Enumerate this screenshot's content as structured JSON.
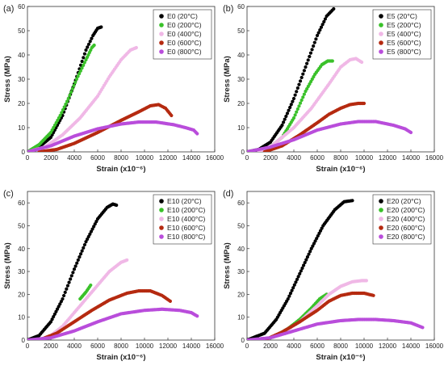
{
  "chart_data": [
    {
      "panel_label": "(a)",
      "type": "scatter",
      "xlabel": "Strain (x10⁻⁶)",
      "ylabel": "Stress (MPa)",
      "xlim": [
        0,
        16000
      ],
      "ylim": [
        0,
        60
      ],
      "xticks": [
        "0",
        "2000",
        "4000",
        "6000",
        "8000",
        "10000",
        "12000",
        "14000",
        "16000"
      ],
      "yticks": [
        "0",
        "10",
        "20",
        "30",
        "40",
        "50",
        "60"
      ],
      "legend_position": "top-right",
      "series": [
        {
          "name": "E0 (20°C)",
          "color": "#000000",
          "points": [
            [
              0,
              0
            ],
            [
              1000,
              2
            ],
            [
              2000,
              6
            ],
            [
              3000,
              15
            ],
            [
              4000,
              28
            ],
            [
              5000,
              42
            ],
            [
              5600,
              48
            ],
            [
              6000,
              51
            ],
            [
              6300,
              51.5
            ]
          ]
        },
        {
          "name": "E0 (200°C)",
          "color": "#3ac12a",
          "points": [
            [
              0,
              0
            ],
            [
              1000,
              3
            ],
            [
              2000,
              8
            ],
            [
              2800,
              15
            ],
            [
              3500,
              22
            ],
            [
              4200,
              30
            ],
            [
              5000,
              38
            ],
            [
              5500,
              43
            ],
            [
              5700,
              44
            ]
          ]
        },
        {
          "name": "E0 (400°C)",
          "color": "#f0b8e6",
          "points": [
            [
              0,
              0
            ],
            [
              1500,
              2
            ],
            [
              3000,
              7
            ],
            [
              4500,
              14
            ],
            [
              6000,
              23
            ],
            [
              7000,
              31
            ],
            [
              8000,
              38
            ],
            [
              8800,
              42
            ],
            [
              9300,
              43
            ]
          ]
        },
        {
          "name": "E0 (600°C)",
          "color": "#b52a10",
          "points": [
            [
              1000,
              0
            ],
            [
              2500,
              1
            ],
            [
              4000,
              3.5
            ],
            [
              6000,
              8
            ],
            [
              8000,
              13
            ],
            [
              9500,
              16.5
            ],
            [
              10500,
              19
            ],
            [
              11200,
              19.5
            ],
            [
              11800,
              18
            ],
            [
              12300,
              15
            ]
          ]
        },
        {
          "name": "E0 (800°C)",
          "color": "#b94ddb",
          "points": [
            [
              0,
              0
            ],
            [
              2000,
              2.5
            ],
            [
              4000,
              6.5
            ],
            [
              6000,
              9.5
            ],
            [
              8000,
              11.5
            ],
            [
              9500,
              12.3
            ],
            [
              11000,
              12.3
            ],
            [
              12500,
              11.2
            ],
            [
              13500,
              10
            ],
            [
              14200,
              9
            ],
            [
              14500,
              7.5
            ]
          ]
        }
      ]
    },
    {
      "panel_label": "(b)",
      "type": "scatter",
      "xlabel": "Strain (x10⁻⁶)",
      "ylabel": "Stress (MPa)",
      "xlim": [
        0,
        16000
      ],
      "ylim": [
        0,
        60
      ],
      "xticks": [
        "0",
        "2000",
        "4000",
        "6000",
        "8000",
        "10000",
        "12000",
        "14000",
        "16000"
      ],
      "yticks": [
        "0",
        "10",
        "20",
        "30",
        "40",
        "50",
        "60"
      ],
      "legend_position": "top-right",
      "series": [
        {
          "name": "E5 (20°C)",
          "color": "#000000",
          "points": [
            [
              0,
              0
            ],
            [
              1000,
              1
            ],
            [
              2000,
              4
            ],
            [
              3000,
              11
            ],
            [
              4000,
              22
            ],
            [
              5000,
              35
            ],
            [
              6000,
              48
            ],
            [
              6800,
              56
            ],
            [
              7400,
              59
            ]
          ]
        },
        {
          "name": "E5 (200°C)",
          "color": "#3ac12a",
          "points": [
            [
              1000,
              0
            ],
            [
              2000,
              2
            ],
            [
              3000,
              6
            ],
            [
              4000,
              14
            ],
            [
              5000,
              25
            ],
            [
              5800,
              32
            ],
            [
              6400,
              36
            ],
            [
              6900,
              37.5
            ],
            [
              7300,
              37.5
            ]
          ]
        },
        {
          "name": "E5 (400°C)",
          "color": "#f0b8e6",
          "points": [
            [
              1000,
              0
            ],
            [
              2000,
              2
            ],
            [
              4000,
              10
            ],
            [
              5500,
              18
            ],
            [
              7000,
              28
            ],
            [
              8000,
              35
            ],
            [
              8800,
              38
            ],
            [
              9300,
              38.5
            ],
            [
              9800,
              37
            ]
          ]
        },
        {
          "name": "E5 (600°C)",
          "color": "#b52a10",
          "points": [
            [
              1500,
              0
            ],
            [
              3000,
              2.5
            ],
            [
              4500,
              7
            ],
            [
              6000,
              12
            ],
            [
              7000,
              15.5
            ],
            [
              8000,
              18
            ],
            [
              8800,
              19.5
            ],
            [
              9500,
              20
            ],
            [
              10000,
              20
            ]
          ]
        },
        {
          "name": "E5 (800°C)",
          "color": "#b94ddb",
          "points": [
            [
              0,
              0
            ],
            [
              2000,
              2
            ],
            [
              4000,
              5
            ],
            [
              6000,
              9
            ],
            [
              8000,
              11.5
            ],
            [
              9500,
              12.5
            ],
            [
              11000,
              12.5
            ],
            [
              12500,
              11
            ],
            [
              13500,
              9.5
            ],
            [
              14000,
              8
            ]
          ]
        }
      ]
    },
    {
      "panel_label": "(c)",
      "type": "scatter",
      "xlabel": "Strain (x10⁻⁶)",
      "ylabel": "Stress (MPa)",
      "xlim": [
        0,
        16000
      ],
      "ylim": [
        0,
        65
      ],
      "xticks": [
        "0",
        "2000",
        "4000",
        "6000",
        "8000",
        "10000",
        "12000",
        "14000",
        "16000"
      ],
      "yticks": [
        "0",
        "10",
        "20",
        "30",
        "40",
        "50",
        "60"
      ],
      "legend_position": "top-right",
      "series": [
        {
          "name": "E10 (20°C)",
          "color": "#000000",
          "points": [
            [
              0,
              0
            ],
            [
              1000,
              2
            ],
            [
              2000,
              8
            ],
            [
              3000,
              18
            ],
            [
              4000,
              31
            ],
            [
              5000,
              43
            ],
            [
              6000,
              53
            ],
            [
              6800,
              58
            ],
            [
              7300,
              59.5
            ],
            [
              7600,
              59
            ]
          ]
        },
        {
          "name": "E10 (200°C)",
          "color": "#3ac12a",
          "points": [
            [
              4500,
              18
            ],
            [
              5000,
              21
            ],
            [
              5400,
              24
            ]
          ]
        },
        {
          "name": "E10 (400°C)",
          "color": "#f0b8e6",
          "points": [
            [
              1000,
              0
            ],
            [
              2000,
              2
            ],
            [
              3000,
              6
            ],
            [
              4000,
              12
            ],
            [
              5000,
              18
            ],
            [
              6000,
              24
            ],
            [
              7000,
              30
            ],
            [
              8000,
              34
            ],
            [
              8500,
              35
            ]
          ]
        },
        {
          "name": "E10 (600°C)",
          "color": "#b52a10",
          "points": [
            [
              1000,
              0
            ],
            [
              2500,
              3
            ],
            [
              4000,
              8
            ],
            [
              5500,
              13
            ],
            [
              7000,
              17.5
            ],
            [
              8500,
              20.5
            ],
            [
              9500,
              21.5
            ],
            [
              10500,
              21.5
            ],
            [
              11500,
              19.5
            ],
            [
              12200,
              17
            ]
          ]
        },
        {
          "name": "E10 (800°C)",
          "color": "#b94ddb",
          "points": [
            [
              0,
              0
            ],
            [
              2000,
              1
            ],
            [
              4000,
              4
            ],
            [
              6000,
              8
            ],
            [
              8000,
              11.5
            ],
            [
              10000,
              13
            ],
            [
              11500,
              13.5
            ],
            [
              13000,
              13
            ],
            [
              14000,
              12
            ],
            [
              14500,
              10.5
            ]
          ]
        }
      ]
    },
    {
      "panel_label": "(d)",
      "type": "scatter",
      "xlabel": "Strain (x10⁻⁶)",
      "ylabel": "Stress (MPa)",
      "xlim": [
        0,
        16000
      ],
      "ylim": [
        0,
        65
      ],
      "xticks": [
        "0",
        "2000",
        "4000",
        "6000",
        "8000",
        "10000",
        "12000",
        "14000",
        "16000"
      ],
      "yticks": [
        "0",
        "10",
        "20",
        "30",
        "40",
        "50",
        "60"
      ],
      "legend_position": "top-right",
      "series": [
        {
          "name": "E20 (20°C)",
          "color": "#000000",
          "points": [
            [
              0,
              0
            ],
            [
              1500,
              3
            ],
            [
              2500,
              9
            ],
            [
              3500,
              18
            ],
            [
              4500,
              29
            ],
            [
              5500,
              40
            ],
            [
              6500,
              50
            ],
            [
              7500,
              57
            ],
            [
              8300,
              60.5
            ],
            [
              9000,
              61
            ]
          ]
        },
        {
          "name": "E20 (200°C)",
          "color": "#3ac12a",
          "points": [
            [
              1500,
              0
            ],
            [
              2500,
              2
            ],
            [
              3500,
              5
            ],
            [
              4500,
              9
            ],
            [
              5500,
              14
            ],
            [
              6200,
              18
            ],
            [
              6800,
              20
            ]
          ]
        },
        {
          "name": "E20 (400°C)",
          "color": "#f0b8e6",
          "points": [
            [
              1500,
              0
            ],
            [
              3000,
              3
            ],
            [
              4500,
              8
            ],
            [
              6000,
              15
            ],
            [
              7000,
              20
            ],
            [
              8000,
              23.5
            ],
            [
              9000,
              25.5
            ],
            [
              9800,
              26
            ],
            [
              10200,
              26
            ]
          ]
        },
        {
          "name": "E20 (600°C)",
          "color": "#b52a10",
          "points": [
            [
              1500,
              0
            ],
            [
              3000,
              3.5
            ],
            [
              4500,
              8
            ],
            [
              6000,
              13
            ],
            [
              7000,
              17
            ],
            [
              8000,
              19.5
            ],
            [
              9000,
              20.5
            ],
            [
              10000,
              20.5
            ],
            [
              10800,
              19.5
            ]
          ]
        },
        {
          "name": "E20 (800°C)",
          "color": "#b94ddb",
          "points": [
            [
              0,
              0
            ],
            [
              2000,
              1
            ],
            [
              4000,
              4
            ],
            [
              6000,
              7
            ],
            [
              8000,
              8.5
            ],
            [
              9500,
              9
            ],
            [
              11000,
              9
            ],
            [
              12500,
              8.5
            ],
            [
              14000,
              7.5
            ],
            [
              15000,
              5.5
            ]
          ]
        }
      ]
    }
  ]
}
